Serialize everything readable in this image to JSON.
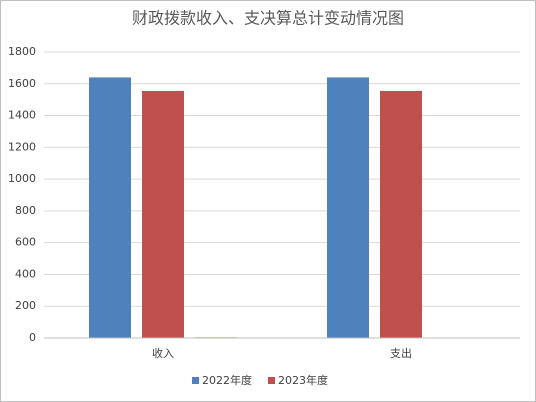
{
  "chart_data": {
    "type": "bar",
    "title": "财政拨款收入、支决算总计变动情况图",
    "categories": [
      "收入",
      "支出"
    ],
    "series": [
      {
        "name": "2022年度",
        "color": "#4f81bd",
        "values": [
          1640,
          1640
        ]
      },
      {
        "name": "2023年度",
        "color": "#c0504d",
        "values": [
          1555,
          1555
        ]
      },
      {
        "color": "#9bbb59",
        "values": [
          5,
          null
        ]
      }
    ],
    "ylim": [
      0,
      1800
    ],
    "yticks": [
      0,
      200,
      400,
      600,
      800,
      1000,
      1200,
      1400,
      1600,
      1800
    ],
    "grid": true,
    "legend": "bottom"
  }
}
